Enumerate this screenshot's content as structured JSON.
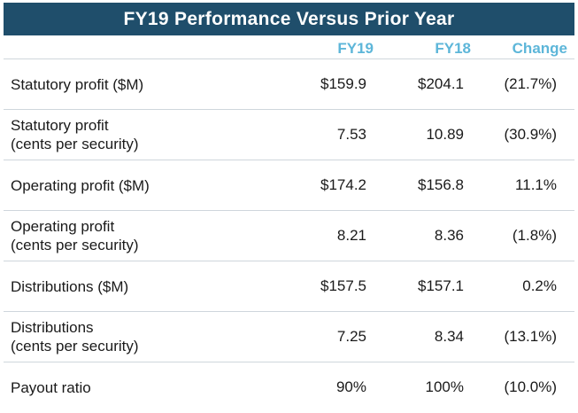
{
  "title": "FY19 Performance Versus Prior Year",
  "colors": {
    "title_bg": "#1f4e6b",
    "title_text": "#ffffff",
    "column_header": "#5db6d9",
    "divider": "#cfd6dc"
  },
  "columns": {
    "fy19": "FY19",
    "fy18": "FY18",
    "change": "Change"
  },
  "rows": [
    {
      "label": "Statutory profit ($M)",
      "fy19": "$159.9",
      "fy18": "$204.1",
      "change": "(21.7%)"
    },
    {
      "label": "Statutory profit\n(cents per security)",
      "fy19": "7.53",
      "fy18": "10.89",
      "change": "(30.9%)"
    },
    {
      "label": "Operating profit ($M)",
      "fy19": "$174.2",
      "fy18": "$156.8",
      "change": "11.1%"
    },
    {
      "label": "Operating profit\n(cents per security)",
      "fy19": "8.21",
      "fy18": "8.36",
      "change": "(1.8%)"
    },
    {
      "label": "Distributions ($M)",
      "fy19": "$157.5",
      "fy18": "$157.1",
      "change": "0.2%"
    },
    {
      "label": "Distributions\n(cents per security)",
      "fy19": "7.25",
      "fy18": "8.34",
      "change": "(13.1%)"
    },
    {
      "label": "Payout ratio",
      "fy19": "90%",
      "fy18": "100%",
      "change": "(10.0%)"
    }
  ]
}
